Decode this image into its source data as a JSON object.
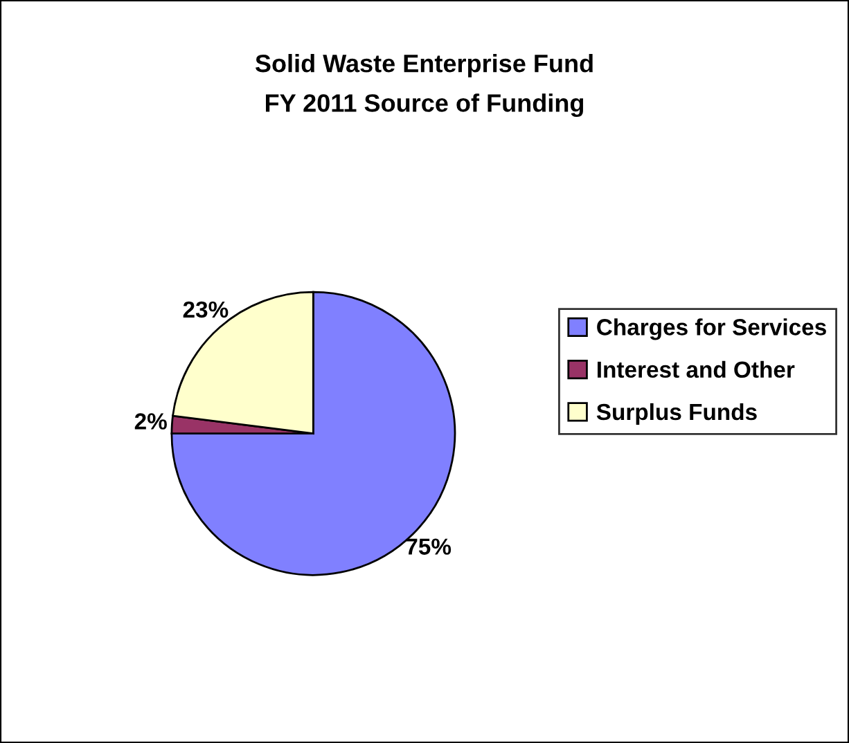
{
  "chart_data": {
    "type": "pie",
    "title": "Solid Waste Enterprise Fund\nFY 2011 Source of Funding",
    "categories": [
      "Charges for Services",
      "Interest and Other",
      "Surplus Funds"
    ],
    "values": [
      75,
      2,
      23
    ],
    "value_labels": [
      "75%",
      "2%",
      "23%"
    ],
    "colors": [
      "#8080ff",
      "#993366",
      "#ffffcc"
    ],
    "legend": "right"
  }
}
